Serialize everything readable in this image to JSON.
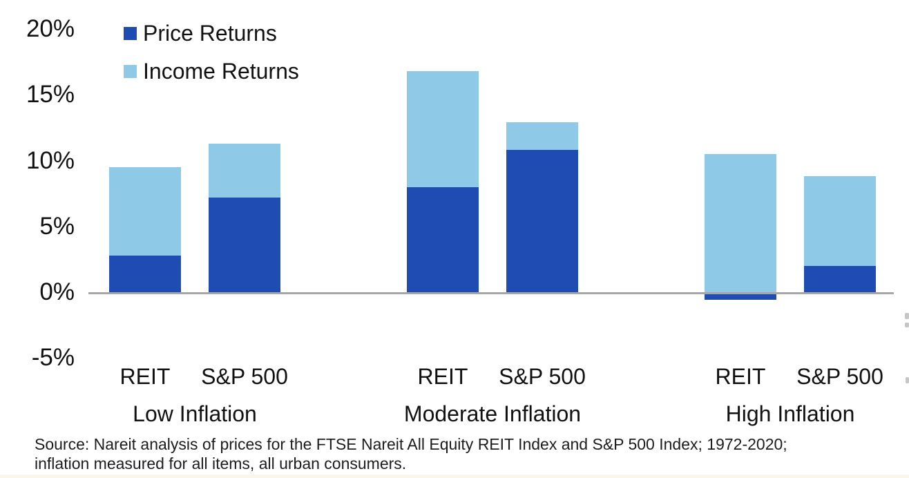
{
  "colors": {
    "price": "#1e4cb3",
    "income": "#8ec9e8",
    "axis_line": "#a6a6a6",
    "text": "#111111"
  },
  "legend": {
    "items": [
      {
        "label": "Price Returns",
        "color": "#1e4cb3"
      },
      {
        "label": "Income Returns",
        "color": "#8ec9e8"
      }
    ]
  },
  "y_axis": {
    "tick_labels": [
      "20%",
      "15%",
      "10%",
      "5%",
      "0%",
      "-5%"
    ],
    "tick_values": [
      20,
      15,
      10,
      5,
      0,
      -5
    ]
  },
  "source": {
    "lines": [
      "Source: Nareit analysis of prices for the FTSE Nareit All Equity REIT Index and S&P 500 Index; 1972-2020;",
      "inflation measured for all items, all urban consumers."
    ]
  },
  "chart_data": {
    "type": "bar",
    "stacked": true,
    "title": "",
    "xlabel": "",
    "ylabel": "",
    "unit": "%",
    "ylim": [
      -5,
      20
    ],
    "y_ticks": [
      20,
      15,
      10,
      5,
      0,
      -5
    ],
    "grid": false,
    "legend_position": "top-left",
    "series": [
      {
        "name": "Price Returns",
        "key": "price",
        "color": "#1e4cb3"
      },
      {
        "name": "Income Returns",
        "key": "income",
        "color": "#8ec9e8"
      }
    ],
    "groups": [
      {
        "label": "Low Inflation",
        "bars": [
          {
            "label": "REIT",
            "price": 2.8,
            "income": 6.7
          },
          {
            "label": "S&P 500",
            "price": 7.2,
            "income": 4.1
          }
        ]
      },
      {
        "label": "Moderate Inflation",
        "bars": [
          {
            "label": "REIT",
            "price": 8.0,
            "income": 8.8
          },
          {
            "label": "S&P 500",
            "price": 10.8,
            "income": 2.1
          }
        ]
      },
      {
        "label": "High Inflation",
        "bars": [
          {
            "label": "REIT",
            "price": -0.4,
            "income": 10.5
          },
          {
            "label": "S&P 500",
            "price": 2.0,
            "income": 6.8
          }
        ]
      }
    ]
  }
}
